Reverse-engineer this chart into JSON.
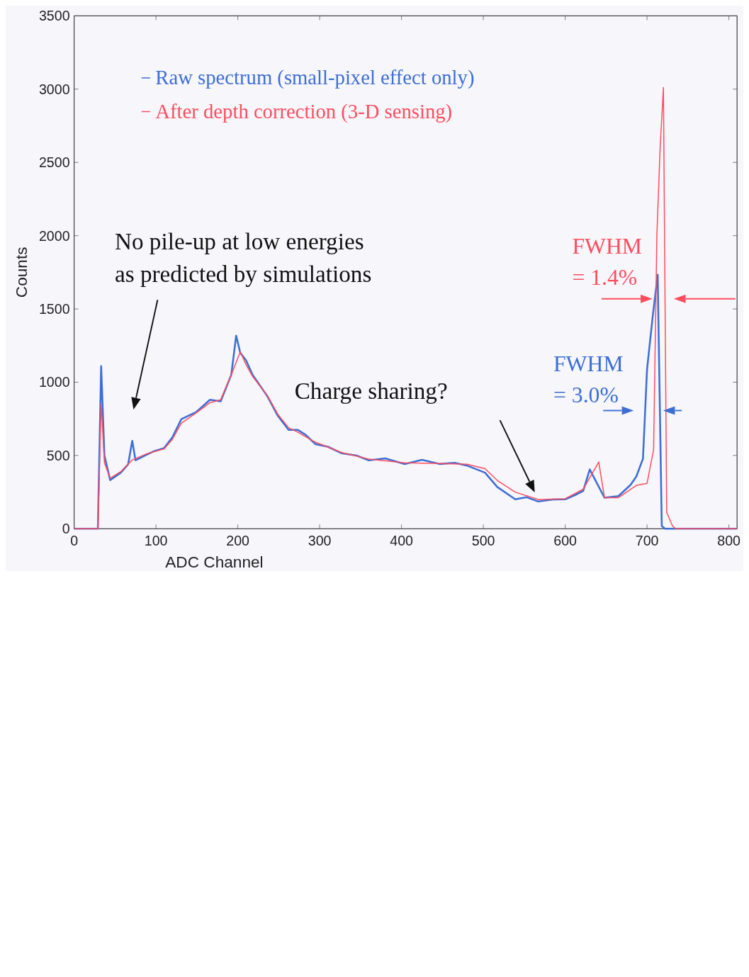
{
  "chart_data": {
    "type": "line",
    "xlabel": "ADC Channel",
    "ylabel": "Counts",
    "xlim": [
      0,
      810
    ],
    "ylim": [
      0,
      3500
    ],
    "xticks": [
      0,
      100,
      200,
      300,
      400,
      500,
      600,
      700,
      800
    ],
    "yticks": [
      0,
      500,
      1000,
      1500,
      2000,
      2500,
      3000,
      3500
    ],
    "grid": false,
    "legend": "top left",
    "marker": "none",
    "line_style": "solid",
    "annotations": [
      "No pile-up at low energies\nas predicted by simulations",
      "Charge sharing?",
      "FWHM\n= 1.4%",
      "FWHM\n= 3.0%"
    ],
    "series": [
      {
        "name": "Raw spectrum (small-pixel effect only)",
        "color": "#3c6fd6",
        "x": [
          0,
          29,
          33,
          37,
          44,
          57,
          66,
          71,
          75,
          88,
          98,
          110,
          120,
          131,
          149,
          166,
          179,
          192,
          198,
          203,
          210,
          218,
          236,
          249,
          262,
          273,
          283,
          295,
          310,
          327,
          345,
          360,
          380,
          404,
          425,
          447,
          465,
          480,
          502,
          517,
          539,
          553,
          567,
          585,
          600,
          612,
          622,
          630,
          637,
          648,
          665,
          680,
          687,
          695,
          700,
          707,
          713,
          718,
          722,
          810
        ],
        "values": [
          0,
          0,
          1110,
          500,
          332,
          383,
          440,
          600,
          467,
          504,
          530,
          551,
          624,
          748,
          796,
          880,
          869,
          1051,
          1318,
          1200,
          1150,
          1051,
          905,
          770,
          675,
          675,
          640,
          577,
          560,
          515,
          500,
          467,
          480,
          442,
          470,
          442,
          450,
          431,
          383,
          285,
          201,
          215,
          186,
          200,
          201,
          230,
          259,
          405,
          330,
          212,
          223,
          300,
          358,
          478,
          1088,
          1453,
          1734,
          18,
          0,
          0
        ]
      },
      {
        "name": "After depth correction (3-D sensing)",
        "color": "#ff4d5e",
        "x": [
          0,
          29,
          33,
          37,
          44,
          57,
          71,
          88,
          110,
          120,
          131,
          149,
          166,
          179,
          192,
          203,
          210,
          218,
          236,
          249,
          262,
          273,
          295,
          327,
          360,
          404,
          447,
          480,
          502,
          517,
          539,
          567,
          600,
          622,
          641,
          648,
          665,
          687,
          700,
          708,
          712,
          716,
          720,
          724,
          731,
          735,
          810
        ],
        "values": [
          0,
          0,
          858,
          450,
          345,
          390,
          470,
          510,
          545,
          610,
          720,
          790,
          860,
          880,
          1050,
          1208,
          1120,
          1040,
          910,
          780,
          690,
          660,
          590,
          520,
          475,
          450,
          445,
          440,
          410,
          330,
          250,
          200,
          205,
          270,
          456,
          212,
          212,
          296,
          310,
          540,
          2000,
          2600,
          3011,
          113,
          20,
          0,
          0
        ]
      }
    ]
  }
}
